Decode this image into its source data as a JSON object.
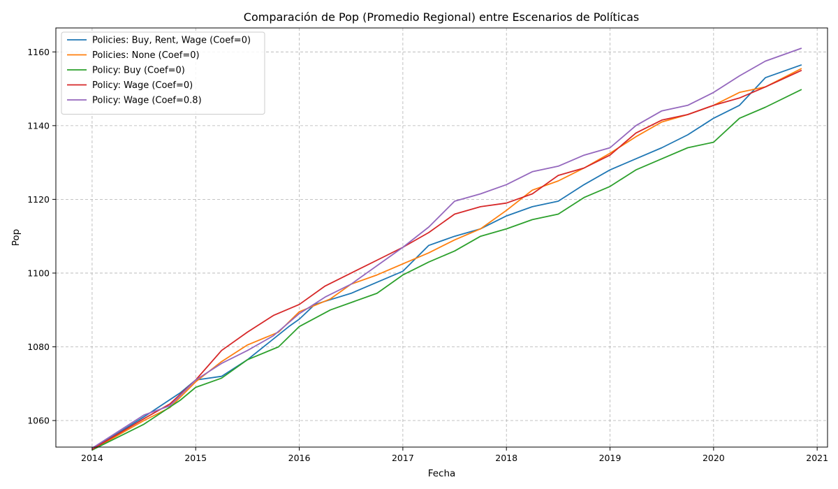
{
  "chart_data": {
    "type": "line",
    "title": "Comparación de Pop (Promedio Regional) entre Escenarios de Políticas",
    "xlabel": "Fecha",
    "ylabel": "Pop",
    "xlim": [
      2013.65,
      2021.1
    ],
    "ylim": [
      1052.8,
      1166.5
    ],
    "x_ticks": [
      2014,
      2015,
      2016,
      2017,
      2018,
      2019,
      2020,
      2021
    ],
    "x_tick_labels": [
      "2014",
      "2015",
      "2016",
      "2017",
      "2018",
      "2019",
      "2020",
      "2021"
    ],
    "y_ticks": [
      1060,
      1080,
      1100,
      1120,
      1140,
      1160
    ],
    "y_tick_labels": [
      "1060",
      "1080",
      "1100",
      "1120",
      "1140",
      "1160"
    ],
    "grid": true,
    "legend_position": "top-left",
    "series": [
      {
        "name": "Policies: Buy, Rent, Wage (Coef=0)",
        "color": "#1f77b4",
        "points": [
          [
            2014.0,
            1052.2
          ],
          [
            2014.5,
            1061.0
          ],
          [
            2014.85,
            1067.5
          ],
          [
            2015.0,
            1071.0
          ],
          [
            2015.25,
            1072.0
          ],
          [
            2015.5,
            1076.5
          ],
          [
            2015.9,
            1085.5
          ],
          [
            2016.0,
            1087.5
          ],
          [
            2016.15,
            1091.5
          ],
          [
            2016.5,
            1094.5
          ],
          [
            2016.75,
            1097.5
          ],
          [
            2017.0,
            1100.5
          ],
          [
            2017.25,
            1107.5
          ],
          [
            2017.5,
            1110.0
          ],
          [
            2017.75,
            1112.0
          ],
          [
            2018.0,
            1115.5
          ],
          [
            2018.25,
            1118.0
          ],
          [
            2018.5,
            1119.5
          ],
          [
            2018.75,
            1124.0
          ],
          [
            2019.0,
            1128.0
          ],
          [
            2019.25,
            1131.0
          ],
          [
            2019.5,
            1134.0
          ],
          [
            2019.75,
            1137.5
          ],
          [
            2020.0,
            1142.0
          ],
          [
            2020.25,
            1145.5
          ],
          [
            2020.5,
            1153.0
          ],
          [
            2020.85,
            1156.5
          ]
        ]
      },
      {
        "name": "Policies: None (Coef=0)",
        "color": "#ff7f0e",
        "points": [
          [
            2014.0,
            1052.0
          ],
          [
            2014.5,
            1060.0
          ],
          [
            2014.75,
            1063.5
          ],
          [
            2015.0,
            1070.5
          ],
          [
            2015.25,
            1076.0
          ],
          [
            2015.5,
            1080.5
          ],
          [
            2015.8,
            1084.0
          ],
          [
            2016.0,
            1089.5
          ],
          [
            2016.3,
            1093.0
          ],
          [
            2016.5,
            1097.0
          ],
          [
            2016.75,
            1099.5
          ],
          [
            2017.0,
            1102.5
          ],
          [
            2017.25,
            1105.5
          ],
          [
            2017.5,
            1109.0
          ],
          [
            2017.75,
            1112.0
          ],
          [
            2018.0,
            1117.0
          ],
          [
            2018.25,
            1122.5
          ],
          [
            2018.5,
            1125.0
          ],
          [
            2018.75,
            1128.5
          ],
          [
            2019.0,
            1132.5
          ],
          [
            2019.25,
            1137.0
          ],
          [
            2019.5,
            1141.0
          ],
          [
            2019.75,
            1143.0
          ],
          [
            2020.0,
            1145.5
          ],
          [
            2020.25,
            1149.0
          ],
          [
            2020.5,
            1150.5
          ],
          [
            2020.85,
            1155.5
          ]
        ]
      },
      {
        "name": "Policy: Buy (Coef=0)",
        "color": "#2ca02c",
        "points": [
          [
            2014.0,
            1052.0
          ],
          [
            2014.5,
            1059.0
          ],
          [
            2014.85,
            1065.5
          ],
          [
            2015.0,
            1069.0
          ],
          [
            2015.25,
            1071.5
          ],
          [
            2015.5,
            1076.5
          ],
          [
            2015.8,
            1080.0
          ],
          [
            2016.0,
            1085.5
          ],
          [
            2016.3,
            1090.0
          ],
          [
            2016.5,
            1092.0
          ],
          [
            2016.75,
            1094.5
          ],
          [
            2017.0,
            1099.5
          ],
          [
            2017.25,
            1103.0
          ],
          [
            2017.5,
            1106.0
          ],
          [
            2017.75,
            1110.0
          ],
          [
            2018.0,
            1112.0
          ],
          [
            2018.25,
            1114.5
          ],
          [
            2018.5,
            1116.0
          ],
          [
            2018.75,
            1120.5
          ],
          [
            2019.0,
            1123.5
          ],
          [
            2019.25,
            1128.0
          ],
          [
            2019.5,
            1131.0
          ],
          [
            2019.75,
            1134.0
          ],
          [
            2020.0,
            1135.5
          ],
          [
            2020.25,
            1142.0
          ],
          [
            2020.5,
            1145.0
          ],
          [
            2020.85,
            1149.8
          ]
        ]
      },
      {
        "name": "Policy: Wage (Coef=0)",
        "color": "#d62728",
        "points": [
          [
            2014.0,
            1052.2
          ],
          [
            2014.5,
            1060.5
          ],
          [
            2014.75,
            1064.5
          ],
          [
            2015.0,
            1071.0
          ],
          [
            2015.25,
            1079.0
          ],
          [
            2015.5,
            1084.0
          ],
          [
            2015.75,
            1088.5
          ],
          [
            2016.0,
            1091.5
          ],
          [
            2016.25,
            1096.5
          ],
          [
            2016.5,
            1100.0
          ],
          [
            2016.75,
            1103.5
          ],
          [
            2017.0,
            1107.0
          ],
          [
            2017.25,
            1111.0
          ],
          [
            2017.5,
            1116.0
          ],
          [
            2017.75,
            1118.0
          ],
          [
            2018.0,
            1119.0
          ],
          [
            2018.25,
            1121.5
          ],
          [
            2018.5,
            1126.5
          ],
          [
            2018.75,
            1128.5
          ],
          [
            2019.0,
            1132.0
          ],
          [
            2019.25,
            1138.0
          ],
          [
            2019.5,
            1141.5
          ],
          [
            2019.75,
            1143.0
          ],
          [
            2020.0,
            1145.5
          ],
          [
            2020.25,
            1147.5
          ],
          [
            2020.5,
            1150.5
          ],
          [
            2020.85,
            1155.0
          ]
        ]
      },
      {
        "name": "Policy: Wage (Coef=0.8)",
        "color": "#9467bd",
        "points": [
          [
            2014.0,
            1052.5
          ],
          [
            2014.5,
            1061.5
          ],
          [
            2014.75,
            1064.0
          ],
          [
            2015.0,
            1071.0
          ],
          [
            2015.25,
            1075.5
          ],
          [
            2015.5,
            1079.0
          ],
          [
            2015.75,
            1083.0
          ],
          [
            2016.0,
            1089.0
          ],
          [
            2016.25,
            1093.5
          ],
          [
            2016.5,
            1097.0
          ],
          [
            2016.75,
            1102.0
          ],
          [
            2017.0,
            1107.0
          ],
          [
            2017.25,
            1112.5
          ],
          [
            2017.5,
            1119.5
          ],
          [
            2017.75,
            1121.5
          ],
          [
            2018.0,
            1124.0
          ],
          [
            2018.25,
            1127.5
          ],
          [
            2018.5,
            1129.0
          ],
          [
            2018.75,
            1132.0
          ],
          [
            2019.0,
            1134.0
          ],
          [
            2019.25,
            1140.0
          ],
          [
            2019.5,
            1144.0
          ],
          [
            2019.75,
            1145.5
          ],
          [
            2020.0,
            1149.0
          ],
          [
            2020.25,
            1153.5
          ],
          [
            2020.5,
            1157.5
          ],
          [
            2020.85,
            1161.0
          ]
        ]
      }
    ]
  }
}
